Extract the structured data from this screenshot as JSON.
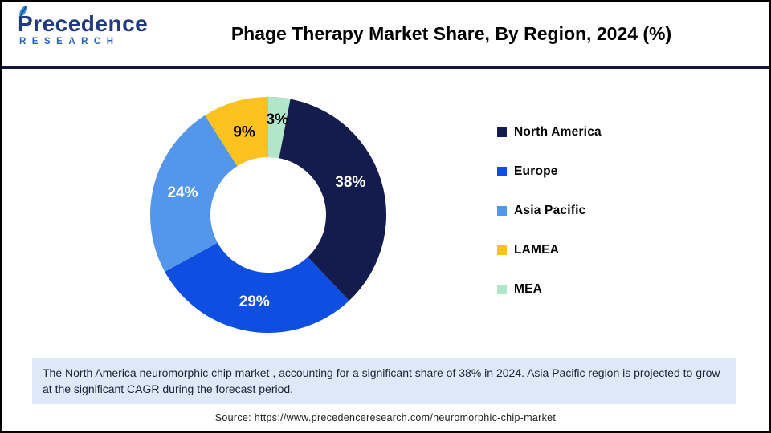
{
  "header": {
    "logo": {
      "brand": "Precedence",
      "sub": "RESEARCH"
    },
    "title": "Phage Therapy Market Share, By Region, 2024 (%)"
  },
  "chart_data": {
    "type": "pie",
    "subtype": "donut",
    "title": "Phage Therapy Market Share, By Region, 2024 (%)",
    "categories": [
      "North America",
      "Europe",
      "Asia Pacific",
      "LAMEA",
      "MEA"
    ],
    "values": [
      38,
      29,
      24,
      9,
      3
    ],
    "labels": [
      "38%",
      "29%",
      "24%",
      "9%",
      "3%"
    ],
    "colors": [
      "#141b4d",
      "#0e4fe1",
      "#5496ea",
      "#fdc120",
      "#b2e6c8"
    ],
    "label_colors": [
      "#ffffff",
      "#ffffff",
      "#ffffff",
      "#000000",
      "#000000"
    ],
    "label_radius": [
      110,
      110,
      110,
      107,
      119
    ],
    "start_angle": 0,
    "direction": "clockwise",
    "inner_radius_ratio": 0.49,
    "legend_position": "right"
  },
  "note": {
    "text": "The North America neuromorphic chip market , accounting for a significant share of 38% in 2024. Asia Pacific region is projected to grow at the significant CAGR during the forecast period."
  },
  "source": {
    "text": "Source: https://www.precedenceresearch.com/neuromorphic-chip-market"
  },
  "theme": {
    "divider_color": "#121740",
    "note_background": "#dde9f8",
    "logo_primary": "#223a7e",
    "logo_secondary": "#2563c0",
    "title_color": "#000000"
  }
}
